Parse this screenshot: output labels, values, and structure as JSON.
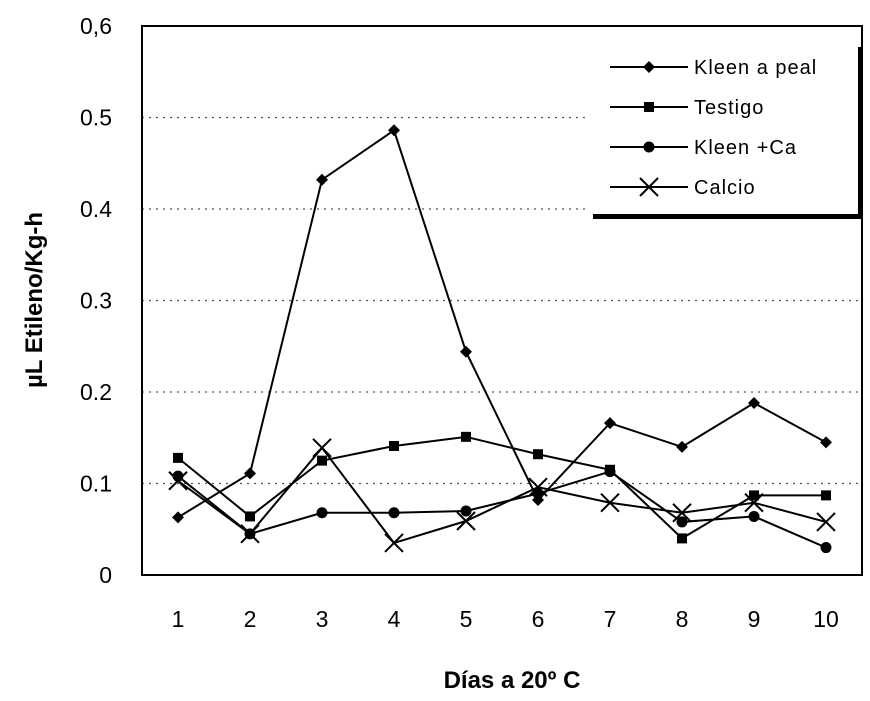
{
  "chart_data": {
    "type": "line",
    "xlabel": "Días a 20º C",
    "ylabel": "µL Etileno/Kg-h",
    "x": [
      1,
      2,
      3,
      4,
      5,
      6,
      7,
      8,
      9,
      10
    ],
    "ylim": [
      0,
      0.6
    ],
    "yticks": [
      "0",
      "0.1",
      "0.2",
      "0.3",
      "0.4",
      "0.5",
      "0,6"
    ],
    "grid": "horizontal dotted",
    "legend_position": "top-right",
    "series": [
      {
        "name": "Kleen a peal",
        "marker": "diamond",
        "values": [
          0.063,
          0.111,
          0.432,
          0.486,
          0.244,
          0.082,
          0.166,
          0.14,
          0.188,
          0.145
        ]
      },
      {
        "name": "Testigo",
        "marker": "square",
        "values": [
          0.128,
          0.064,
          0.125,
          0.141,
          0.151,
          0.132,
          0.115,
          0.04,
          0.087,
          0.087
        ]
      },
      {
        "name": "Kleen +Ca",
        "marker": "circle",
        "values": [
          0.108,
          0.045,
          0.068,
          0.068,
          0.07,
          0.089,
          0.113,
          0.058,
          0.064,
          0.03
        ]
      },
      {
        "name": "Calcio",
        "marker": "x",
        "values": [
          0.103,
          0.045,
          0.139,
          0.035,
          0.059,
          0.096,
          0.079,
          0.068,
          0.079,
          0.058
        ]
      }
    ]
  }
}
